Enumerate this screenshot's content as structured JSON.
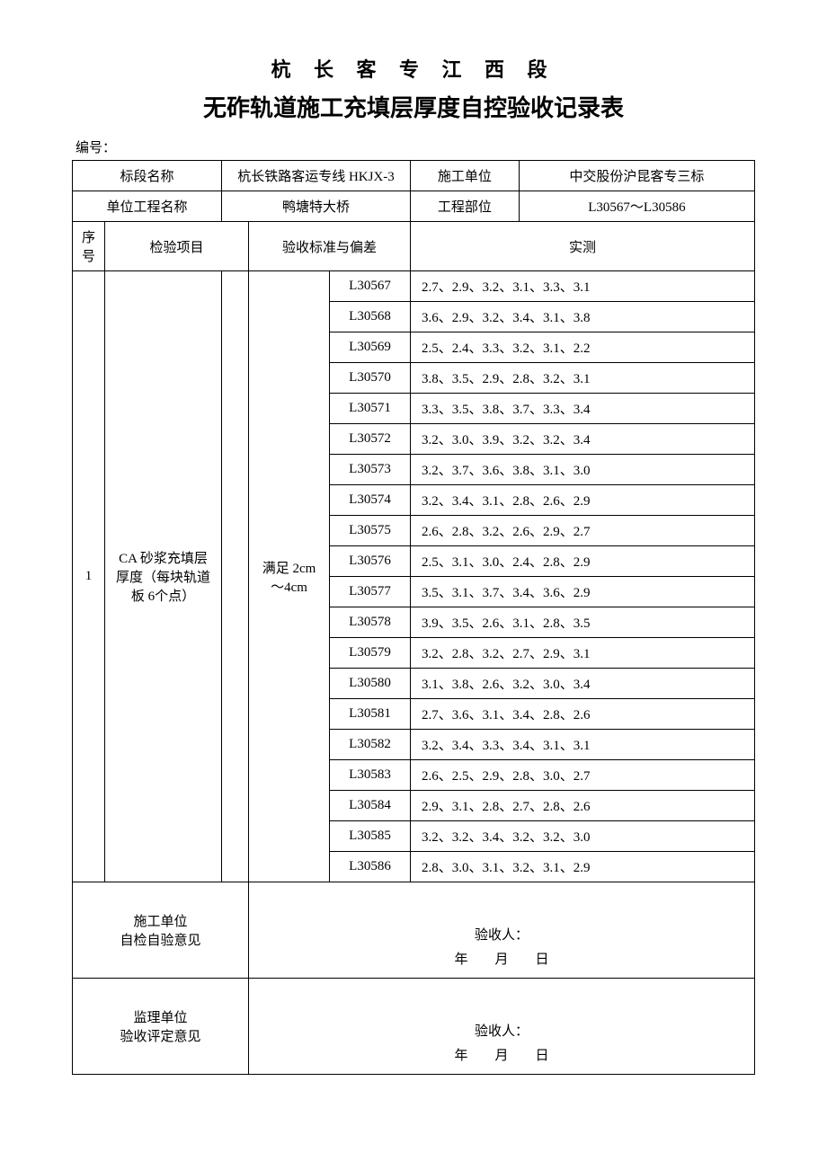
{
  "title_line1": "杭 长 客 专 江 西 段",
  "title_line2": "无砟轨道施工充填层厚度自控验收记录表",
  "doc_number_label": "编号：",
  "header": {
    "section_name_label": "标段名称",
    "section_name_value": "杭长铁路客运专线 HKJX-3",
    "construction_unit_label": "施工单位",
    "construction_unit_value": "中交股份沪昆客专三标",
    "unit_project_label": "单位工程名称",
    "unit_project_value": "鸭塘特大桥",
    "project_part_label": "工程部位",
    "project_part_value": "L30567～L30586"
  },
  "columns": {
    "seq": "序号",
    "item": "检验项目",
    "standard": "验收标准与偏差",
    "measured": "实测"
  },
  "inspection": {
    "seq": "1",
    "item_name": "CA 砂浆充填层厚度（每块轨道板 6个点）",
    "standard": "满足 2cm～4cm"
  },
  "rows": [
    {
      "code": "L30567",
      "values": "2.7、2.9、3.2、3.1、3.3、3.1"
    },
    {
      "code": "L30568",
      "values": "3.6、2.9、3.2、3.4、3.1、3.8"
    },
    {
      "code": "L30569",
      "values": "2.5、2.4、3.3、3.2、3.1、2.2"
    },
    {
      "code": "L30570",
      "values": "3.8、3.5、2.9、2.8、3.2、3.1"
    },
    {
      "code": "L30571",
      "values": "3.3、3.5、3.8、3.7、3.3、3.4"
    },
    {
      "code": "L30572",
      "values": "3.2、3.0、3.9、3.2、3.2、3.4"
    },
    {
      "code": "L30573",
      "values": "3.2、3.7、3.6、3.8、3.1、3.0"
    },
    {
      "code": "L30574",
      "values": "3.2、3.4、3.1、2.8、2.6、2.9"
    },
    {
      "code": "L30575",
      "values": "2.6、2.8、3.2、2.6、2.9、2.7"
    },
    {
      "code": "L30576",
      "values": "2.5、3.1、3.0、2.4、2.8、2.9"
    },
    {
      "code": "L30577",
      "values": "3.5、3.1、3.7、3.4、3.6、2.9"
    },
    {
      "code": "L30578",
      "values": "3.9、3.5、2.6、3.1、2.8、3.5"
    },
    {
      "code": "L30579",
      "values": "3.2、2.8、3.2、2.7、2.9、3.1"
    },
    {
      "code": "L30580",
      "values": "3.1、3.8、2.6、3.2、3.0、3.4"
    },
    {
      "code": "L30581",
      "values": "2.7、3.6、3.1、3.4、2.8、2.6"
    },
    {
      "code": "L30582",
      "values": "3.2、3.4、3.3、3.4、3.1、3.1"
    },
    {
      "code": "L30583",
      "values": "2.6、2.5、2.9、2.8、3.0、2.7"
    },
    {
      "code": "L30584",
      "values": "2.9、3.1、2.8、2.7、2.8、2.6"
    },
    {
      "code": "L30585",
      "values": "3.2、3.2、3.4、3.2、3.2、3.0"
    },
    {
      "code": "L30586",
      "values": "2.8、3.0、3.1、3.2、3.1、2.9"
    }
  ],
  "signatures": {
    "construction_label_1": "施工单位",
    "construction_label_2": "自检自验意见",
    "supervision_label_1": "监理单位",
    "supervision_label_2": "验收评定意见",
    "inspector_label": "验收人：",
    "date_label": "年　　月　　日"
  }
}
